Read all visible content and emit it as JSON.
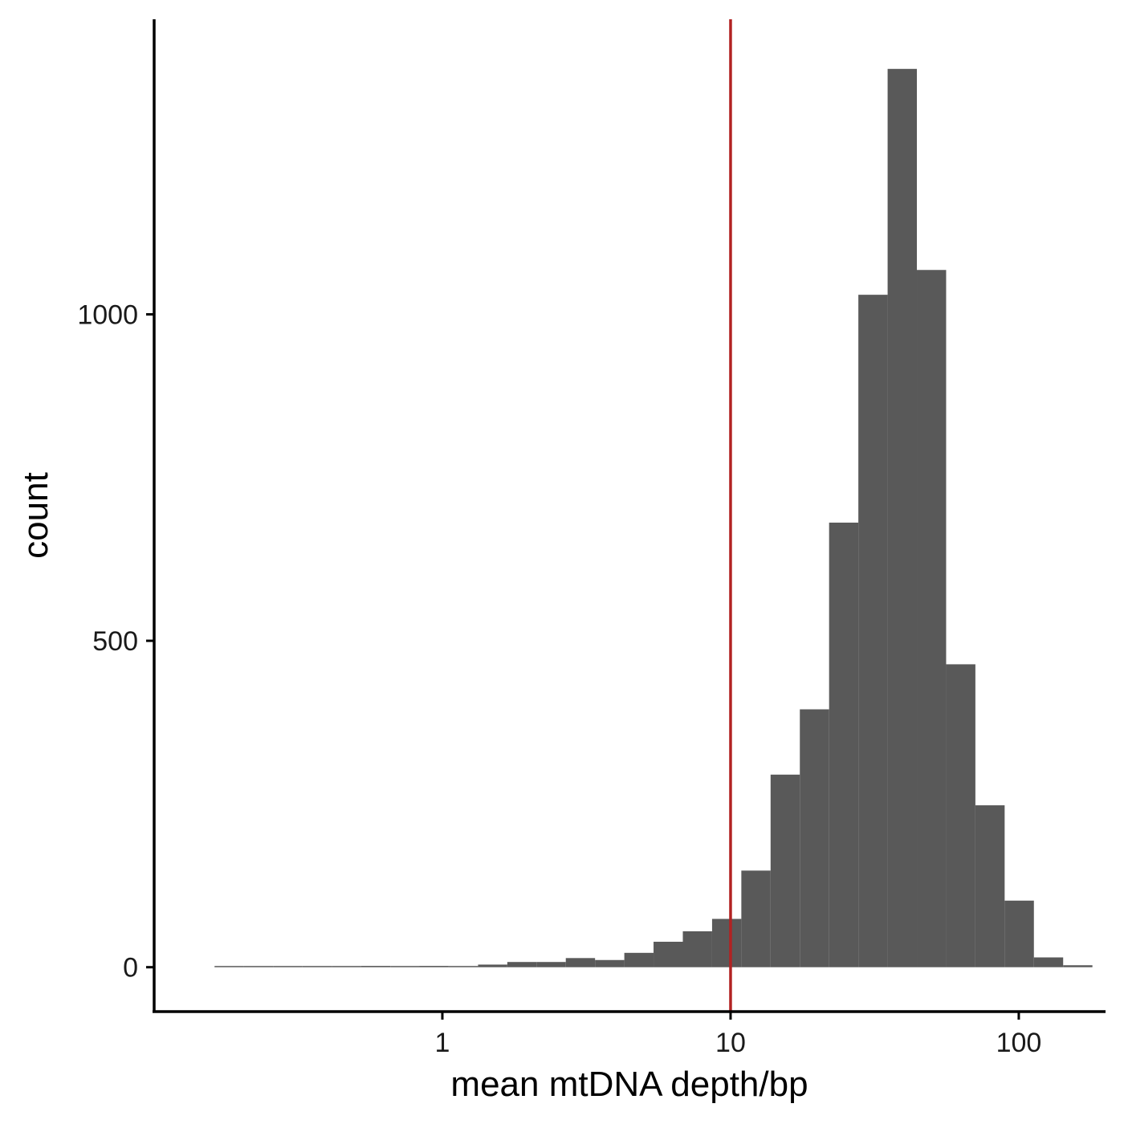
{
  "chart_data": {
    "type": "bar",
    "subtype": "histogram",
    "title": "",
    "xlabel": "mean mtDNA depth/bp",
    "ylabel": "count",
    "x_scale": "log10",
    "xlim": [
      0.1,
      200
    ],
    "ylim": [
      -68,
      1452
    ],
    "x_ticks": [
      {
        "value": 1,
        "label": "1"
      },
      {
        "value": 10,
        "label": "10"
      },
      {
        "value": 100,
        "label": "100"
      }
    ],
    "y_ticks": [
      {
        "value": 0,
        "label": "0"
      },
      {
        "value": 500,
        "label": "500"
      },
      {
        "value": 1000,
        "label": "1000"
      }
    ],
    "grid": false,
    "legend": "none",
    "bar_color": "#595959",
    "bins": [
      {
        "x0": 0.162,
        "x1": 0.205,
        "count": 0
      },
      {
        "x0": 0.205,
        "x1": 0.259,
        "count": 0
      },
      {
        "x0": 0.259,
        "x1": 0.327,
        "count": 0
      },
      {
        "x0": 0.327,
        "x1": 0.413,
        "count": 0
      },
      {
        "x0": 0.413,
        "x1": 0.522,
        "count": 0
      },
      {
        "x0": 0.522,
        "x1": 0.66,
        "count": 2
      },
      {
        "x0": 0.66,
        "x1": 0.833,
        "count": 1
      },
      {
        "x0": 0.833,
        "x1": 1.052,
        "count": 2
      },
      {
        "x0": 1.052,
        "x1": 1.33,
        "count": 1
      },
      {
        "x0": 1.33,
        "x1": 1.68,
        "count": 4
      },
      {
        "x0": 1.68,
        "x1": 2.122,
        "count": 8
      },
      {
        "x0": 2.122,
        "x1": 2.681,
        "count": 8
      },
      {
        "x0": 2.681,
        "x1": 3.387,
        "count": 14
      },
      {
        "x0": 3.387,
        "x1": 4.279,
        "count": 11
      },
      {
        "x0": 4.279,
        "x1": 5.405,
        "count": 22
      },
      {
        "x0": 5.405,
        "x1": 6.829,
        "count": 39
      },
      {
        "x0": 6.829,
        "x1": 8.627,
        "count": 55
      },
      {
        "x0": 8.627,
        "x1": 10.898,
        "count": 74
      },
      {
        "x0": 10.898,
        "x1": 13.768,
        "count": 148
      },
      {
        "x0": 13.768,
        "x1": 17.393,
        "count": 295
      },
      {
        "x0": 17.393,
        "x1": 21.973,
        "count": 395
      },
      {
        "x0": 21.973,
        "x1": 27.759,
        "count": 681
      },
      {
        "x0": 27.759,
        "x1": 35.069,
        "count": 1030
      },
      {
        "x0": 35.069,
        "x1": 44.303,
        "count": 1376
      },
      {
        "x0": 44.303,
        "x1": 55.969,
        "count": 1068
      },
      {
        "x0": 55.969,
        "x1": 70.707,
        "count": 464
      },
      {
        "x0": 70.707,
        "x1": 89.325,
        "count": 248
      },
      {
        "x0": 89.325,
        "x1": 112.847,
        "count": 102
      },
      {
        "x0": 112.847,
        "x1": 142.563,
        "count": 15
      },
      {
        "x0": 142.563,
        "x1": 180.103,
        "count": 3
      }
    ],
    "reference_line": {
      "x": 10,
      "color": "#b22222"
    }
  }
}
